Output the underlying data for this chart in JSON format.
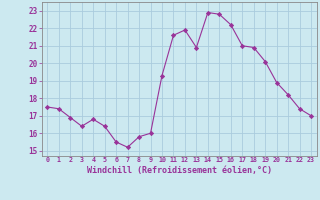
{
  "x": [
    0,
    1,
    2,
    3,
    4,
    5,
    6,
    7,
    8,
    9,
    10,
    11,
    12,
    13,
    14,
    15,
    16,
    17,
    18,
    19,
    20,
    21,
    22,
    23
  ],
  "y": [
    17.5,
    17.4,
    16.9,
    16.4,
    16.8,
    16.4,
    15.5,
    15.2,
    15.8,
    16.0,
    19.3,
    21.6,
    21.9,
    20.9,
    22.9,
    22.8,
    22.2,
    21.0,
    20.9,
    20.1,
    18.9,
    18.2,
    17.4,
    17.0
  ],
  "line_color": "#993399",
  "marker": "D",
  "marker_size": 2.2,
  "bg_color": "#cce9f0",
  "grid_color": "#aaccdd",
  "xlabel": "Windchill (Refroidissement éolien,°C)",
  "xlabel_color": "#993399",
  "ylabel_ticks": [
    15,
    16,
    17,
    18,
    19,
    20,
    21,
    22,
    23
  ],
  "ylim": [
    14.7,
    23.5
  ],
  "xlim": [
    -0.5,
    23.5
  ],
  "tick_color": "#993399",
  "title": ""
}
